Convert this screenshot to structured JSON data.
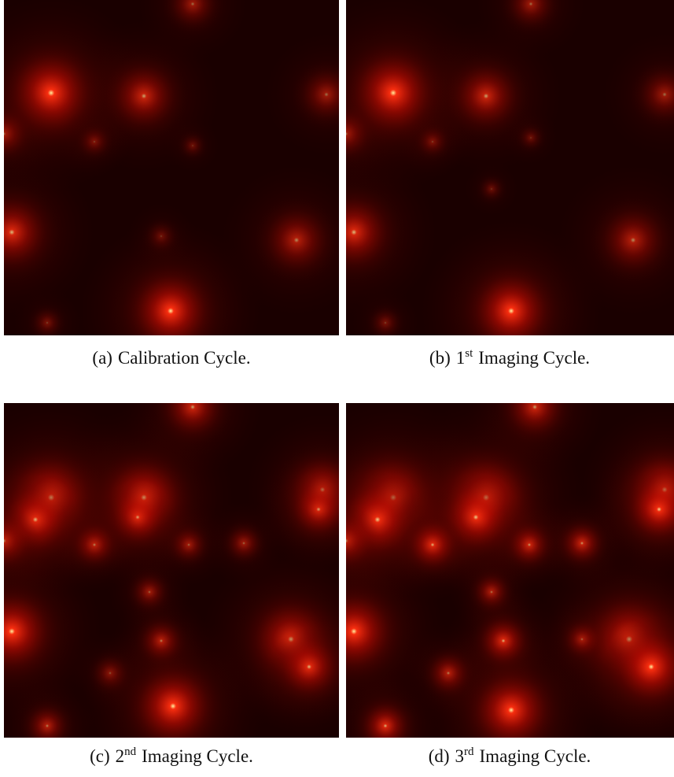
{
  "panels": [
    {
      "label": "(a)",
      "caption": "Calibration Cycle."
    },
    {
      "label": "(b)",
      "ordinal": "1",
      "suffix": "st",
      "caption": "Imaging Cycle."
    },
    {
      "label": "(c)",
      "ordinal": "2",
      "suffix": "nd",
      "caption": "Imaging Cycle."
    },
    {
      "label": "(d)",
      "ordinal": "3",
      "suffix": "rd",
      "caption": "Imaging Cycle."
    }
  ]
}
